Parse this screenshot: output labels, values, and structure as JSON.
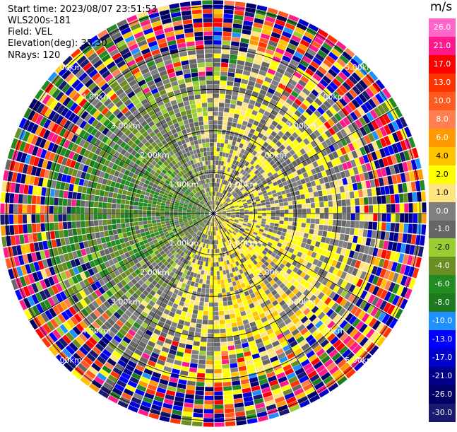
{
  "header": {
    "start_time": "Start time: 2023/08/07 23:51:53",
    "instrument": "WLS200s-181",
    "field": "Field: VEL",
    "elevation": "Elevation(deg): 35.30",
    "nrays": "NRays: 120"
  },
  "colorbar": {
    "unit": "m/s",
    "labels": [
      "26.0",
      "21.0",
      "17.0",
      "13.0",
      "10.0",
      "8.0",
      "6.0",
      "4.0",
      "2.0",
      "1.0",
      "0.0",
      "-1.0",
      "-2.0",
      "-4.0",
      "-6.0",
      "-8.0",
      "-10.0",
      "-13.0",
      "-17.0",
      "-21.0",
      "-26.0",
      "-30.0"
    ],
    "colors": [
      "#ff66cc",
      "#ff1a8c",
      "#ff0000",
      "#ff3300",
      "#ff5a1f",
      "#ff7f50",
      "#ff9900",
      "#ffc300",
      "#ffff00",
      "#ffe580",
      "#7f7f7f",
      "#666666",
      "#9acd32",
      "#6b8e23",
      "#228b22",
      "#1e7a1e",
      "#1e90ff",
      "#0000ff",
      "#0000cd",
      "#00008b",
      "#000066",
      "#191970"
    ]
  },
  "chart_data": {
    "type": "heatmap",
    "projection": "polar (PPI)",
    "field": "VEL",
    "units": "m/s",
    "nrays": 120,
    "ring_labels": [
      "1.00km",
      "2.00km",
      "3.00km",
      "4.00km",
      "5.00km"
    ],
    "ring_ranges_km": [
      1,
      2,
      3,
      4,
      5
    ],
    "max_range_km": 5.0,
    "clim": [
      -30.0,
      26.0
    ],
    "pattern": "Dipole-like radial wind field: positive velocities (yellow/orange, 2–10 m/s) concentrated in the north-east and south-east sectors near the center, negative velocities (green, -2 to -8 m/s) in the west and south sectors, near-zero (gray) widespread at mid ranges, noisy multicolored returns beyond ~4 km range."
  }
}
